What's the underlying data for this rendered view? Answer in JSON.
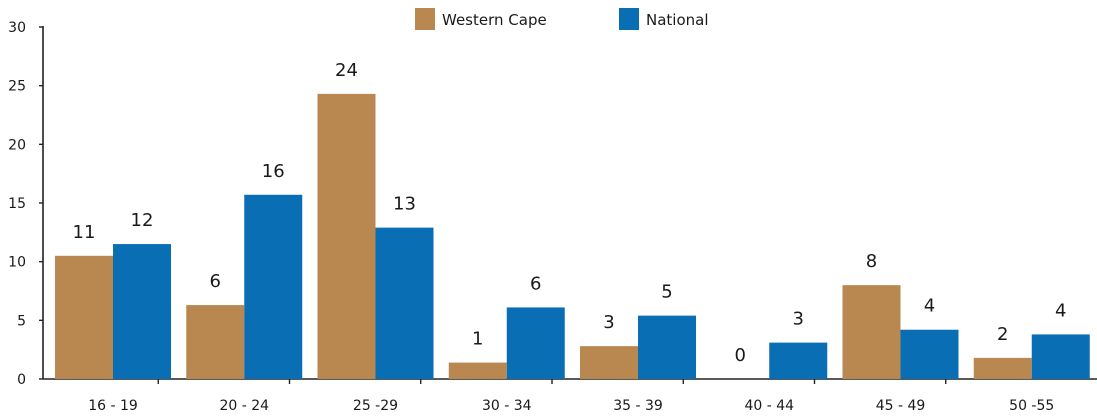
{
  "chart_data": {
    "type": "bar",
    "categories": [
      "16 - 19",
      "20 - 24",
      "25 -29",
      "30 - 34",
      "35 - 39",
      "40 - 44",
      "45 - 49",
      "50 -55"
    ],
    "series": [
      {
        "name": "Western Cape",
        "color": "#b98850",
        "values": [
          10.5,
          6.3,
          24.3,
          1.4,
          2.8,
          0,
          8.0,
          1.8
        ],
        "labels": [
          "11",
          "6",
          "24",
          "1",
          "3",
          "0",
          "8",
          "2"
        ]
      },
      {
        "name": "National",
        "color": "#0a6eb4",
        "values": [
          11.5,
          15.7,
          12.9,
          6.1,
          5.4,
          3.1,
          4.2,
          3.8
        ],
        "labels": [
          "12",
          "16",
          "13",
          "6",
          "5",
          "3",
          "4",
          "4"
        ]
      }
    ],
    "ylim": [
      0,
      30
    ],
    "yticks": [
      "0",
      "5",
      "10",
      "15",
      "20",
      "25",
      "30"
    ],
    "grid": false,
    "legend_position": "top-center"
  }
}
